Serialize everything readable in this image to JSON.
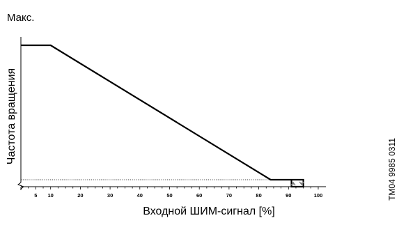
{
  "chart_data": {
    "type": "line",
    "max_label": "Макс.",
    "ylabel": "Частота вращения",
    "xlabel": "Входной ШИМ-сигнал [%]",
    "figure_id": "TM04 9985 0311",
    "xlim": [
      0,
      100
    ],
    "x_ticks": [
      5,
      10,
      20,
      30,
      40,
      50,
      60,
      70,
      80,
      90,
      100
    ],
    "x_tick_labels": [
      "5",
      "10",
      "20",
      "30",
      "40",
      "50",
      "60",
      "70",
      "80",
      "90",
      "100"
    ],
    "ylim": [
      0,
      1
    ],
    "series": [
      {
        "x": [
          0,
          10,
          84,
          91,
          95,
          95,
          91,
          91
        ],
        "y": [
          1,
          1,
          0.03,
          0.03,
          0.03,
          0,
          0,
          0.03
        ]
      }
    ],
    "min_reference_line": {
      "y": 0.03,
      "style": "dotted"
    },
    "hysteresis_arrows": [
      {
        "x": 91,
        "direction": "up"
      },
      {
        "x": 95,
        "direction": "down"
      }
    ]
  }
}
